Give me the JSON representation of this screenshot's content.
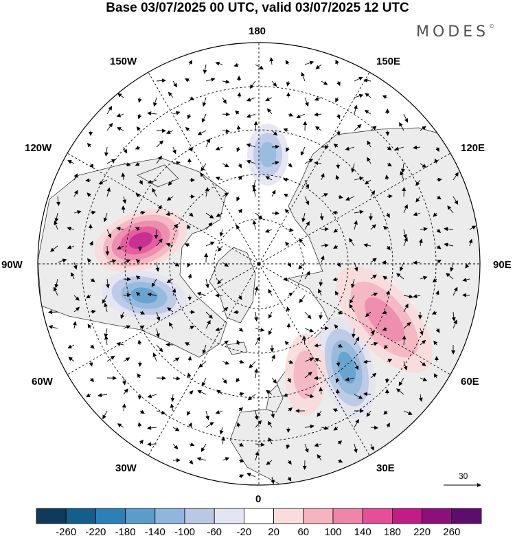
{
  "header": {
    "title": "Base 03/07/2025 00 UTC, valid 03/07/2025 12 UTC",
    "brand": "MODES",
    "brand_mark": "©"
  },
  "map": {
    "projection": "polar-stereographic-north",
    "longitude_labels": [
      "180",
      "150E",
      "120E",
      "90E",
      "60E",
      "30E",
      "0",
      "30W",
      "60W",
      "90W",
      "120W",
      "150W"
    ],
    "colors": {
      "land": "#ececec",
      "ocean": "#ffffff",
      "coastline": "#333333",
      "graticule": "#000000",
      "vectors": "#000000"
    },
    "anomaly_centers": [
      {
        "region": "northeast-pacific",
        "sign": "positive",
        "value": 180
      },
      {
        "region": "western-europe",
        "sign": "negative",
        "value": -140
      },
      {
        "region": "russia-ural",
        "sign": "positive",
        "value": 100
      },
      {
        "region": "hudson-bay",
        "sign": "negative",
        "value": -140
      },
      {
        "region": "scandinavia",
        "sign": "positive",
        "value": 60
      },
      {
        "region": "bering-sea",
        "sign": "negative",
        "value": -100
      }
    ]
  },
  "vector_scale": {
    "label": "30"
  },
  "colorbar": {
    "ticks": [
      "-260",
      "-220",
      "-180",
      "-140",
      "-100",
      "-60",
      "-20",
      "20",
      "60",
      "100",
      "140",
      "180",
      "220",
      "260"
    ],
    "colors": [
      "#0f3a5c",
      "#135e8c",
      "#2b80b8",
      "#5a9dcd",
      "#8fb6dc",
      "#bac8e6",
      "#e4e5f2",
      "#ffffff",
      "#fbdcdc",
      "#f6b4bf",
      "#ef86aa",
      "#e54f98",
      "#c41c87",
      "#8c0f7c",
      "#5e0c6e"
    ]
  }
}
